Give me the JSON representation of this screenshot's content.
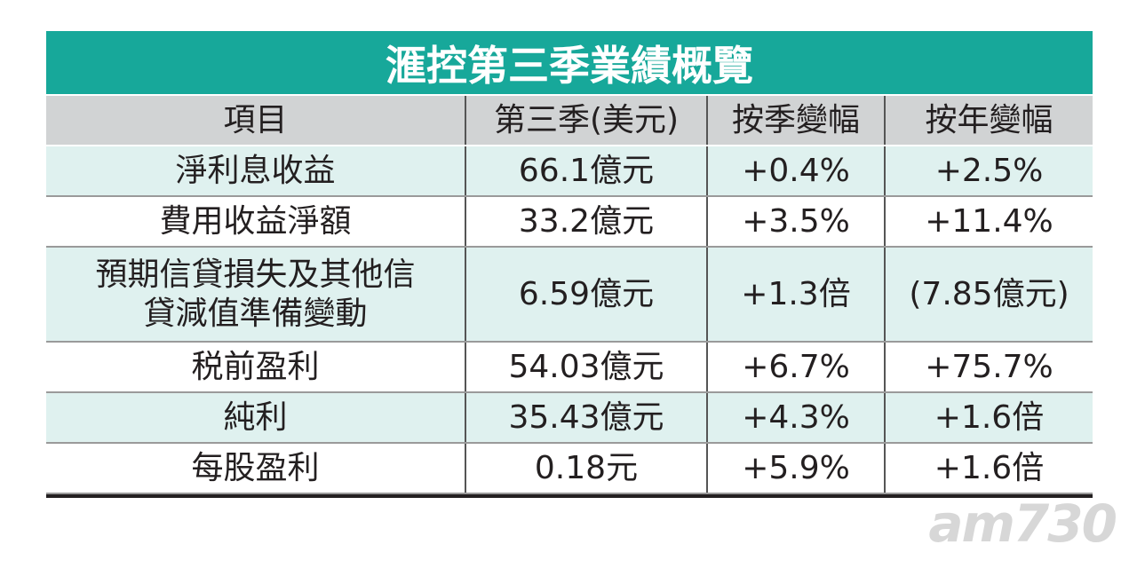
{
  "title": "滙控第三季業績概覽",
  "table": {
    "header": [
      "項目",
      "第三季(美元)",
      "按季變幅",
      "按年變幅"
    ],
    "rows": [
      [
        "淨利息收益",
        "66.1億元",
        "+0.4%",
        "+2.5%"
      ],
      [
        "費用收益淨額",
        "33.2億元",
        "+3.5%",
        "+11.4%"
      ],
      [
        [
          "預期信貸損失及其他信",
          "貸減值準備變動"
        ],
        "6.59億元",
        "+1.3倍",
        "(7.85億元)"
      ],
      [
        "税前盈利",
        "54.03億元",
        "+6.7%",
        "+75.7%"
      ],
      [
        "純利",
        "35.43億元",
        "+4.3%",
        "+1.6倍"
      ],
      [
        "每股盈利",
        "0.18元",
        "+5.9%",
        "+1.6倍"
      ]
    ]
  },
  "watermark": "am730"
}
